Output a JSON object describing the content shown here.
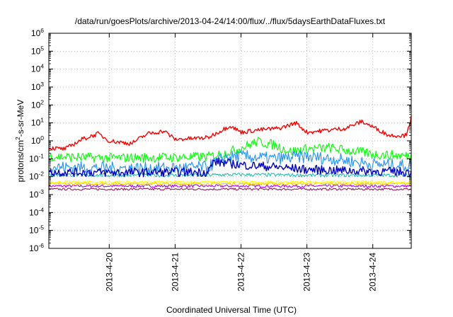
{
  "chart_data": {
    "type": "line",
    "title": "/data/run/goesPlots/archive/2013-04-24/14:00/flux/../flux/5daysEarthDataFluxes.txt",
    "xlabel": "Coordinated Universal Time (UTC)",
    "ylabel_parts": [
      "protons/cm",
      "2",
      "-s-sr-MeV"
    ],
    "y_scale": "log",
    "ylim": [
      1e-06,
      1000000.0
    ],
    "y_ticks": [
      {
        "base": "10",
        "exp": "-6",
        "value": 1e-06
      },
      {
        "base": "10",
        "exp": "-5",
        "value": 1e-05
      },
      {
        "base": "10",
        "exp": "-4",
        "value": 0.0001
      },
      {
        "base": "10",
        "exp": "-3",
        "value": 0.001
      },
      {
        "base": "10",
        "exp": "-2",
        "value": 0.01
      },
      {
        "base": "10",
        "exp": "-1",
        "value": 0.1
      },
      {
        "base": "10",
        "exp": "0",
        "value": 1
      },
      {
        "base": "10",
        "exp": "1",
        "value": 10
      },
      {
        "base": "10",
        "exp": "2",
        "value": 100
      },
      {
        "base": "10",
        "exp": "3",
        "value": 1000
      },
      {
        "base": "10",
        "exp": "4",
        "value": 10000
      },
      {
        "base": "10",
        "exp": "5",
        "value": 100000
      },
      {
        "base": "10",
        "exp": "6",
        "value": 1000000
      }
    ],
    "x_range": [
      "2013-04-19 02:00",
      "2013-04-24 14:00"
    ],
    "x_ticks": [
      {
        "label": "2013-4-20",
        "value": "2013-04-20 00:00"
      },
      {
        "label": "2013-4-21",
        "value": "2013-04-21 00:00"
      },
      {
        "label": "2013-4-22",
        "value": "2013-04-22 00:00"
      },
      {
        "label": "2013-4-23",
        "value": "2013-04-23 00:00"
      },
      {
        "label": "2013-4-24",
        "value": "2013-04-24 00:00"
      }
    ],
    "grid": true,
    "series": [
      {
        "color": "#b000ff",
        "noise": 0.08,
        "points": [
          [
            "2013-04-19 02:00",
            0.003
          ],
          [
            "2013-04-20 00:00",
            0.003
          ],
          [
            "2013-04-21 00:00",
            0.003
          ],
          [
            "2013-04-22 00:00",
            0.003
          ],
          [
            "2013-04-23 00:00",
            0.003
          ],
          [
            "2013-04-24 14:00",
            0.003
          ]
        ]
      },
      {
        "color": "#8b2252",
        "noise": 0.06,
        "points": [
          [
            "2013-04-19 02:00",
            0.002
          ],
          [
            "2013-04-20 00:00",
            0.002
          ],
          [
            "2013-04-21 00:00",
            0.002
          ],
          [
            "2013-04-22 00:00",
            0.002
          ],
          [
            "2013-04-23 00:00",
            0.002
          ],
          [
            "2013-04-24 14:00",
            0.002
          ]
        ]
      },
      {
        "color": "#ffc000",
        "noise": 0.08,
        "points": [
          [
            "2013-04-19 02:00",
            0.004
          ],
          [
            "2013-04-20 00:00",
            0.004
          ],
          [
            "2013-04-21 00:00",
            0.004
          ],
          [
            "2013-04-22 00:00",
            0.004
          ],
          [
            "2013-04-23 00:00",
            0.004
          ],
          [
            "2013-04-24 14:00",
            0.004
          ]
        ]
      },
      {
        "color": "#ffff00",
        "noise": 0.08,
        "points": [
          [
            "2013-04-19 02:00",
            0.005
          ],
          [
            "2013-04-20 00:00",
            0.005
          ],
          [
            "2013-04-21 00:00",
            0.005
          ],
          [
            "2013-04-22 00:00",
            0.005
          ],
          [
            "2013-04-23 00:00",
            0.005
          ],
          [
            "2013-04-24 14:00",
            0.005
          ]
        ]
      },
      {
        "color": "#20c0b0",
        "noise": 0.1,
        "points": [
          [
            "2013-04-19 02:00",
            0.013
          ],
          [
            "2013-04-20 00:00",
            0.012
          ],
          [
            "2013-04-21 00:00",
            0.012
          ],
          [
            "2013-04-22 00:00",
            0.013
          ],
          [
            "2013-04-23 00:00",
            0.012
          ],
          [
            "2013-04-24 14:00",
            0.012
          ]
        ]
      },
      {
        "color": "#00ff00",
        "noise": 0.28,
        "points": [
          [
            "2013-04-19 02:00",
            0.14
          ],
          [
            "2013-04-19 12:00",
            0.12
          ],
          [
            "2013-04-20 00:00",
            0.11
          ],
          [
            "2013-04-21 00:00",
            0.12
          ],
          [
            "2013-04-21 12:00",
            0.13
          ],
          [
            "2013-04-21 18:00",
            0.2
          ],
          [
            "2013-04-22 00:00",
            0.4
          ],
          [
            "2013-04-22 06:00",
            0.9
          ],
          [
            "2013-04-22 12:00",
            0.6
          ],
          [
            "2013-04-22 18:00",
            0.25
          ],
          [
            "2013-04-23 00:00",
            0.35
          ],
          [
            "2013-04-23 08:00",
            0.4
          ],
          [
            "2013-04-23 18:00",
            0.25
          ],
          [
            "2013-04-24 00:00",
            0.18
          ],
          [
            "2013-04-24 14:00",
            0.14
          ]
        ]
      },
      {
        "color": "#1e90ff",
        "noise": 0.35,
        "points": [
          [
            "2013-04-19 02:00",
            0.035
          ],
          [
            "2013-04-20 00:00",
            0.03
          ],
          [
            "2013-04-21 00:00",
            0.03
          ],
          [
            "2013-04-21 12:00",
            0.035
          ],
          [
            "2013-04-21 18:00",
            0.12
          ],
          [
            "2013-04-22 00:00",
            0.14
          ],
          [
            "2013-04-22 12:00",
            0.1
          ],
          [
            "2013-04-23 00:00",
            0.13
          ],
          [
            "2013-04-23 12:00",
            0.09
          ],
          [
            "2013-04-24 00:00",
            0.05
          ],
          [
            "2013-04-24 14:00",
            0.04
          ]
        ]
      },
      {
        "color": "#0000cd",
        "noise": 0.25,
        "points": [
          [
            "2013-04-19 02:00",
            0.018
          ],
          [
            "2013-04-20 00:00",
            0.017
          ],
          [
            "2013-04-21 00:00",
            0.018
          ],
          [
            "2013-04-21 12:00",
            0.018
          ],
          [
            "2013-04-21 14:00",
            0.07
          ],
          [
            "2013-04-22 00:00",
            0.045
          ],
          [
            "2013-04-22 12:00",
            0.035
          ],
          [
            "2013-04-23 00:00",
            0.025
          ],
          [
            "2013-04-24 00:00",
            0.02
          ],
          [
            "2013-04-24 14:00",
            0.018
          ]
        ]
      },
      {
        "color": "#ff0000",
        "noise": 0.12,
        "points": [
          [
            "2013-04-19 02:00",
            0.4
          ],
          [
            "2013-04-19 08:00",
            0.35
          ],
          [
            "2013-04-19 14:00",
            1.2
          ],
          [
            "2013-04-19 20:00",
            2.5
          ],
          [
            "2013-04-20 00:00",
            1.0
          ],
          [
            "2013-04-20 08:00",
            0.7
          ],
          [
            "2013-04-20 14:00",
            2.5
          ],
          [
            "2013-04-20 20:00",
            3.5
          ],
          [
            "2013-04-21 00:00",
            1.2
          ],
          [
            "2013-04-21 12:00",
            1.5
          ],
          [
            "2013-04-21 20:00",
            7
          ],
          [
            "2013-04-22 00:00",
            3
          ],
          [
            "2013-04-22 06:00",
            4
          ],
          [
            "2013-04-22 14:00",
            5
          ],
          [
            "2013-04-22 20:00",
            10
          ],
          [
            "2013-04-23 00:00",
            3
          ],
          [
            "2013-04-23 08:00",
            4
          ],
          [
            "2013-04-23 14:00",
            5
          ],
          [
            "2013-04-23 20:00",
            12
          ],
          [
            "2013-04-24 00:00",
            6
          ],
          [
            "2013-04-24 06:00",
            2
          ],
          [
            "2013-04-24 12:00",
            2
          ],
          [
            "2013-04-24 14:00",
            20
          ]
        ]
      }
    ]
  }
}
